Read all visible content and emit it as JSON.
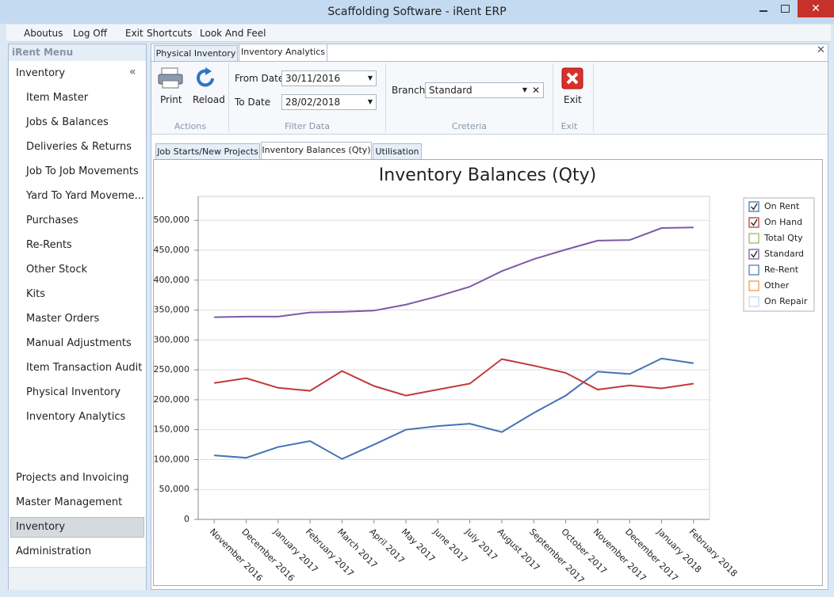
{
  "window": {
    "title": "Scaffolding Software - iRent ERP"
  },
  "menu": [
    "Aboutus",
    "Log Off",
    "Exit",
    "Shortcuts",
    "Look And Feel"
  ],
  "sidebar": {
    "title": "iRent Menu",
    "group": "Inventory",
    "items": [
      "Item Master",
      "Jobs & Balances",
      "Deliveries & Returns",
      "Job To Job Movements",
      "Yard To Yard Moveme...",
      "Purchases",
      "Re-Rents",
      "Other Stock",
      "Kits",
      "Master Orders",
      "Manual Adjustments",
      "Item Transaction Audit",
      "Physical Inventory",
      "Inventory Analytics"
    ],
    "groups": [
      "Projects and Invoicing",
      "Master Management",
      "Inventory",
      "Administration"
    ],
    "selected_group": 2
  },
  "tabs": [
    "Physical Inventory",
    "Inventory Analytics"
  ],
  "active_tab": 1,
  "ribbon": {
    "actions": {
      "label": "Actions",
      "print": "Print",
      "reload": "Reload"
    },
    "filter": {
      "label": "Filter Data",
      "from_label": "From Date",
      "from": "30/11/2016",
      "to_label": "To Date",
      "to": "28/02/2018"
    },
    "criteria": {
      "label": "Creteria",
      "branch_label": "Branch",
      "branch": "Standard"
    },
    "exit": {
      "label": "Exit",
      "button": "Exit"
    }
  },
  "subtabs": [
    "Job Starts/New Projects",
    "Inventory Balances (Qty)",
    "Utilisation"
  ],
  "active_subtab": 1,
  "chart_data": {
    "type": "line",
    "title": "Inventory Balances (Qty)",
    "categories": [
      "November 2016",
      "December 2016",
      "January 2017",
      "February 2017",
      "March 2017",
      "April 2017",
      "May 2017",
      "June 2017",
      "July 2017",
      "August 2017",
      "September 2017",
      "October 2017",
      "November 2017",
      "December 2017",
      "January 2018",
      "February 2018"
    ],
    "series": [
      {
        "name": "On Rent",
        "color": "#4472b4",
        "checked": true,
        "values": [
          107000,
          103000,
          121000,
          131000,
          101000,
          125000,
          150000,
          156000,
          160000,
          146000,
          178000,
          207000,
          247000,
          243000,
          269000,
          261000
        ]
      },
      {
        "name": "On Hand",
        "color": "#c0393b",
        "checked": true,
        "values": [
          228000,
          236000,
          220000,
          215000,
          248000,
          223000,
          207000,
          217000,
          227000,
          268000,
          257000,
          245000,
          217000,
          224000,
          219000,
          227000
        ]
      },
      {
        "name": "Total Qty",
        "color": "#9bbb59",
        "checked": false
      },
      {
        "name": "Standard",
        "color": "#7b5aa6",
        "checked": true,
        "values": [
          338000,
          339000,
          339000,
          346000,
          347000,
          349000,
          359000,
          373000,
          389000,
          415000,
          435000,
          451000,
          466000,
          467000,
          487000,
          488000
        ]
      },
      {
        "name": "Re-Rent",
        "color": "#4f81bd",
        "checked": false
      },
      {
        "name": "Other",
        "color": "#f79646",
        "checked": false
      },
      {
        "name": "On Repair",
        "color": "#c6d9f1",
        "checked": false
      }
    ],
    "ylim": [
      0,
      540000
    ],
    "yticks": [
      0,
      {
        "value": 50000,
        "label": "50,000"
      },
      {
        "value": 100000,
        "label": "100,000"
      },
      {
        "value": 150000,
        "label": "150,000"
      },
      {
        "value": 200000,
        "label": "200,000"
      },
      {
        "value": 250000,
        "label": "250,000"
      },
      {
        "value": 300000,
        "label": "300,000"
      },
      {
        "value": 350000,
        "label": "350,000"
      },
      {
        "value": 400000,
        "label": "400,000"
      },
      {
        "value": 450000,
        "label": "450,000"
      },
      {
        "value": 500000,
        "label": "500,000"
      }
    ],
    "grid": true,
    "legend": "right"
  }
}
